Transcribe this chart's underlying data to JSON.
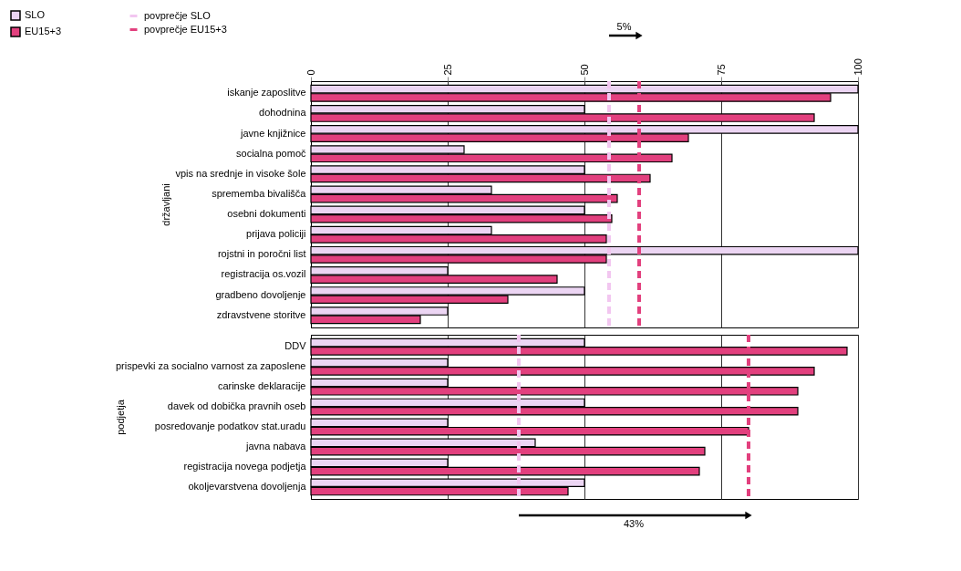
{
  "chart_data": [
    {
      "type": "bar",
      "orientation": "horizontal",
      "ylabel": "državljani",
      "categories": [
        "iskanje zaposlitve",
        "dohodnina",
        "javne knjižnice",
        "socialna pomoč",
        "vpis na srednje in visoke šole",
        "sprememba bivališča",
        "osebni dokumenti",
        "prijava policiji",
        "rojstni in poročni list",
        "registracija os.vozil",
        "gradbeno dovoljenje",
        "zdravstvene storitve"
      ],
      "series": [
        {
          "name": "SLO",
          "color": "#ecd5f3",
          "values": [
            100,
            50,
            100,
            28,
            50,
            33,
            50,
            33,
            100,
            25,
            50,
            25
          ]
        },
        {
          "name": "EU15+3",
          "color": "#e2407e",
          "values": [
            95,
            92,
            69,
            66,
            62,
            56,
            55,
            54,
            54,
            45,
            36,
            20
          ]
        }
      ],
      "xlim": [
        0,
        100
      ],
      "xticks": [
        0,
        25,
        50,
        75,
        100
      ],
      "grid": "x",
      "legend": "top left",
      "ref_lines": [
        {
          "axis": "x",
          "value": 54.5,
          "label": "povprečje SLO",
          "color": "#f2c6f0",
          "line_style": "dashed"
        },
        {
          "axis": "x",
          "value": 60,
          "label": "povprečje EU15+3",
          "color": "#e2407e",
          "line_style": "dashed"
        }
      ],
      "annotations": [
        "5%"
      ]
    },
    {
      "type": "bar",
      "orientation": "horizontal",
      "ylabel": "podjetja",
      "categories": [
        "DDV",
        "prispevki za socialno varnost za zaposlene",
        "carinske deklaracije",
        "davek od dobička pravnih oseb",
        "posredovanje podatkov stat.uradu",
        "javna nabava",
        "registracija novega podjetja",
        "okoljevarstvena dovoljenja"
      ],
      "series": [
        {
          "name": "SLO",
          "color": "#ecd5f3",
          "values": [
            50,
            25,
            25,
            50,
            25,
            41,
            25,
            50
          ]
        },
        {
          "name": "EU15+3",
          "color": "#e2407e",
          "values": [
            98,
            92,
            89,
            89,
            80,
            72,
            71,
            47
          ]
        }
      ],
      "xlim": [
        0,
        100
      ],
      "xticks": [
        0,
        25,
        50,
        75,
        100
      ],
      "grid": "x",
      "tick_labels": "y",
      "ref_lines": [
        {
          "axis": "x",
          "value": 38,
          "color": "#f2c6f0",
          "line_style": "dashed"
        },
        {
          "axis": "x",
          "value": 80,
          "color": "#e2407e",
          "line_style": "dashed"
        }
      ],
      "annotations": [
        "43%"
      ]
    }
  ]
}
